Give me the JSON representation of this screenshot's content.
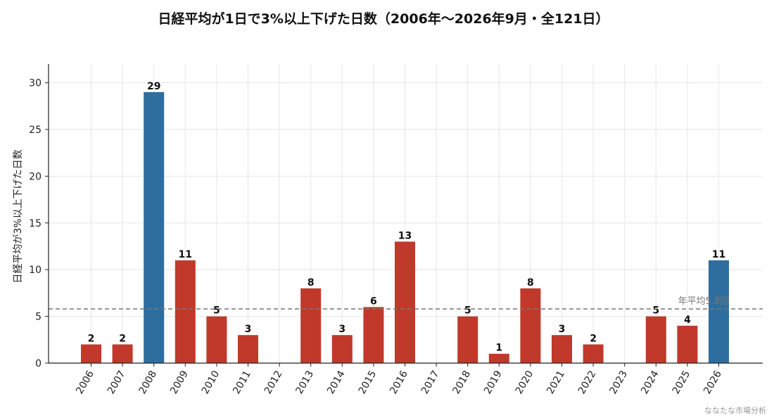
{
  "chart_data": {
    "type": "bar",
    "title": "日経平均が1日で3%以上下げた日数（2006年〜2026年9月・全121日）",
    "xlabel": "",
    "ylabel": "日経平均が3%以上下げた日数",
    "categories": [
      "2006",
      "2007",
      "2008",
      "2009",
      "2010",
      "2011",
      "2012",
      "2013",
      "2014",
      "2015",
      "2016",
      "2017",
      "2018",
      "2019",
      "2020",
      "2021",
      "2022",
      "2023",
      "2024",
      "2025",
      "2026"
    ],
    "values": [
      2,
      2,
      29,
      11,
      5,
      3,
      0,
      8,
      3,
      6,
      13,
      0,
      5,
      1,
      8,
      3,
      2,
      0,
      5,
      4,
      11
    ],
    "data_labels": [
      "2",
      "2",
      "29",
      "11",
      "5",
      "3",
      "",
      "8",
      "3",
      "6",
      "13",
      "",
      "5",
      "1",
      "8",
      "3",
      "2",
      "",
      "5",
      "4",
      "11"
    ],
    "highlight_categories": [
      "2008",
      "2026"
    ],
    "colors": {
      "default": "#c0392b",
      "highlight": "#2e6e9e",
      "average_line": "#777777",
      "grid": "#e6e6e6"
    },
    "ylim": [
      0,
      32
    ],
    "yticks": [
      0,
      5,
      10,
      15,
      20,
      25,
      30
    ],
    "grid": true,
    "average": {
      "value": 5.8,
      "label": "年平均5.8回"
    }
  },
  "credit": "ななたな市場分析"
}
